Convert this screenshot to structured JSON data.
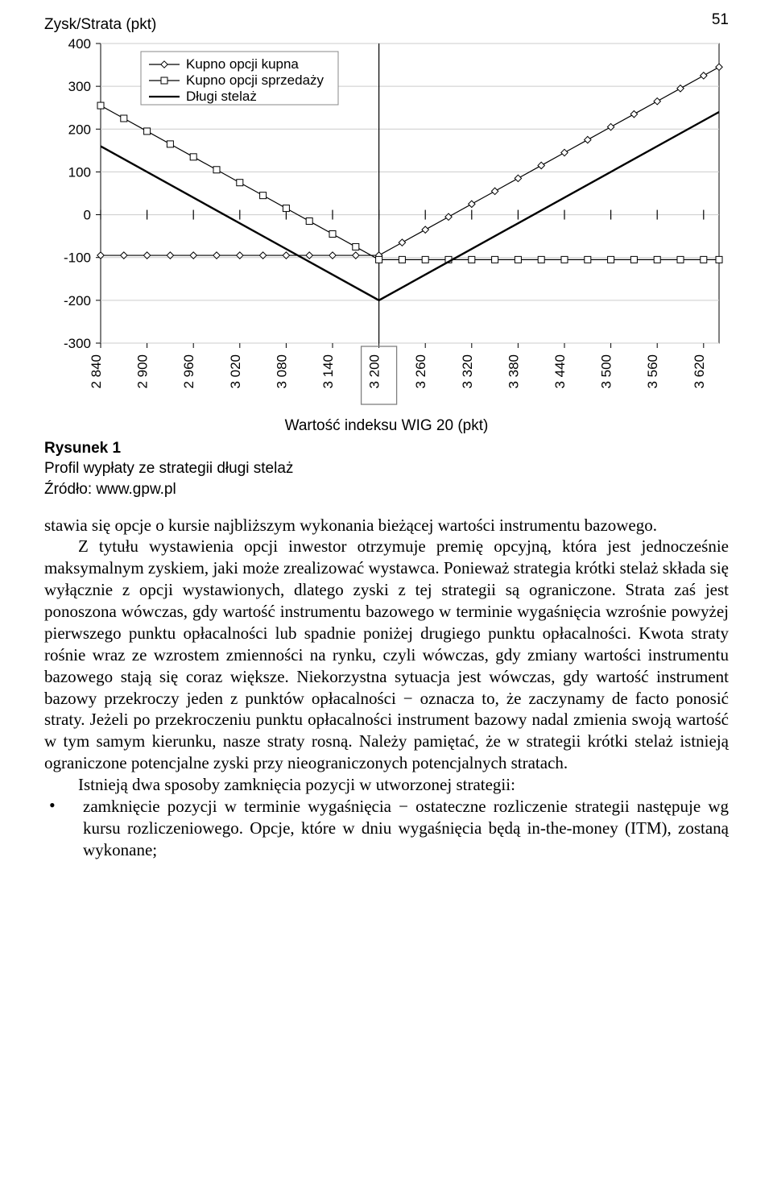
{
  "page_number": "51",
  "chart": {
    "type": "line",
    "y_title": "Zysk/Strata (pkt)",
    "x_title": "Wartość indeksu WIG 20 (pkt)",
    "background_color": "#ffffff",
    "grid_color": "#cccccc",
    "axis_color": "#000000",
    "tick_font_size": 17,
    "y_ticks": [
      -300,
      -200,
      -100,
      0,
      100,
      200,
      300,
      400
    ],
    "ylim": [
      -300,
      400
    ],
    "x_ticks": [
      "2 840",
      "2 900",
      "2 960",
      "3 020",
      "3 080",
      "3 140",
      "3 200",
      "3 260",
      "3 320",
      "3 380",
      "3 440",
      "3 500",
      "3 560",
      "3 620"
    ],
    "x_numeric": [
      2840,
      2900,
      2960,
      3020,
      3080,
      3140,
      3200,
      3260,
      3320,
      3380,
      3440,
      3500,
      3560,
      3620
    ],
    "xlim": [
      2840,
      3640
    ],
    "strike_x": 3200,
    "highlight_box_color": "#808080",
    "legend": {
      "items": [
        {
          "label": "Kupno opcji kupna",
          "marker": "diamond",
          "line": "solid",
          "color": "#000000"
        },
        {
          "label": "Kupno opcji sprzedaży",
          "marker": "square",
          "line": "solid",
          "color": "#000000"
        },
        {
          "label": "Długi stelaż",
          "marker": "none",
          "line": "solid",
          "color": "#000000",
          "width": 2.2
        }
      ],
      "font_size": 17,
      "font_family": "Arial"
    },
    "series": {
      "kupno_opcji_kupna": {
        "color": "#000000",
        "marker": "diamond",
        "points": [
          [
            2840,
            -95
          ],
          [
            2870,
            -95
          ],
          [
            2900,
            -95
          ],
          [
            2930,
            -95
          ],
          [
            2960,
            -95
          ],
          [
            2990,
            -95
          ],
          [
            3020,
            -95
          ],
          [
            3050,
            -95
          ],
          [
            3080,
            -95
          ],
          [
            3110,
            -95
          ],
          [
            3140,
            -95
          ],
          [
            3170,
            -95
          ],
          [
            3200,
            -95
          ],
          [
            3230,
            -65
          ],
          [
            3260,
            -35
          ],
          [
            3290,
            -5
          ],
          [
            3320,
            25
          ],
          [
            3350,
            55
          ],
          [
            3380,
            85
          ],
          [
            3410,
            115
          ],
          [
            3440,
            145
          ],
          [
            3470,
            175
          ],
          [
            3500,
            205
          ],
          [
            3530,
            235
          ],
          [
            3560,
            265
          ],
          [
            3590,
            295
          ],
          [
            3620,
            325
          ],
          [
            3640,
            345
          ]
        ]
      },
      "kupno_opcji_sprzedazy": {
        "color": "#000000",
        "marker": "square",
        "points": [
          [
            2840,
            255
          ],
          [
            2870,
            225
          ],
          [
            2900,
            195
          ],
          [
            2930,
            165
          ],
          [
            2960,
            135
          ],
          [
            2990,
            105
          ],
          [
            3020,
            75
          ],
          [
            3050,
            45
          ],
          [
            3080,
            15
          ],
          [
            3110,
            -15
          ],
          [
            3140,
            -45
          ],
          [
            3170,
            -75
          ],
          [
            3200,
            -105
          ],
          [
            3230,
            -105
          ],
          [
            3260,
            -105
          ],
          [
            3290,
            -105
          ],
          [
            3320,
            -105
          ],
          [
            3350,
            -105
          ],
          [
            3380,
            -105
          ],
          [
            3410,
            -105
          ],
          [
            3440,
            -105
          ],
          [
            3470,
            -105
          ],
          [
            3500,
            -105
          ],
          [
            3530,
            -105
          ],
          [
            3560,
            -105
          ],
          [
            3590,
            -105
          ],
          [
            3620,
            -105
          ],
          [
            3640,
            -105
          ]
        ]
      },
      "dlugi_stelaz": {
        "color": "#000000",
        "width": 2.4,
        "points": [
          [
            2840,
            160
          ],
          [
            3200,
            -200
          ],
          [
            3640,
            240
          ]
        ]
      }
    }
  },
  "fig_label": "Rysunek 1",
  "fig_title": "Profil wypłaty ze strategii długi stelaż",
  "fig_source": "Źródło: www.gpw.pl",
  "para1": "stawia się opcje o kursie najbliższym wykonania bieżącej wartości instrumentu bazowego.",
  "para2": "Z tytułu wystawienia opcji inwestor otrzymuje premię opcyjną, która jest jednocześnie maksymalnym zyskiem, jaki może zrealizować wystawca. Ponieważ strategia krótki stelaż składa się wyłącznie z opcji wystawionych, dlatego zyski z tej strategii są ograniczone. Strata zaś jest ponoszona wówczas, gdy wartość instrumentu bazowego w terminie wygaśnięcia wzrośnie powyżej pierwszego punktu opłacalności lub spadnie poniżej drugiego punktu opłacalności. Kwota straty rośnie wraz ze wzrostem zmienności na rynku, czyli wówczas, gdy zmiany wartości instrumentu bazowego stają się coraz większe. Niekorzystna sytuacja jest wówczas, gdy wartość instrument bazowy przekroczy jeden z punktów opłacalności − oznacza to, że zaczynamy de facto ponosić straty. Jeżeli po przekroczeniu punktu opłacalności instrument bazowy nadal zmienia swoją wartość w tym samym kierunku, nasze straty rosną. Należy pamiętać, że w strategii krótki stelaż istnieją ograniczone potencjalne zyski przy nieograniczonych potencjalnych stratach.",
  "para3": "Istnieją dwa sposoby zamknięcia pozycji w utworzonej strategii:",
  "bullet1": "zamknięcie pozycji w terminie wygaśnięcia − ostateczne rozliczenie strategii następuje wg kursu rozliczeniowego. Opcje, które w dniu wygaśnięcia będą in-the-money (ITM), zostaną wykonane;"
}
